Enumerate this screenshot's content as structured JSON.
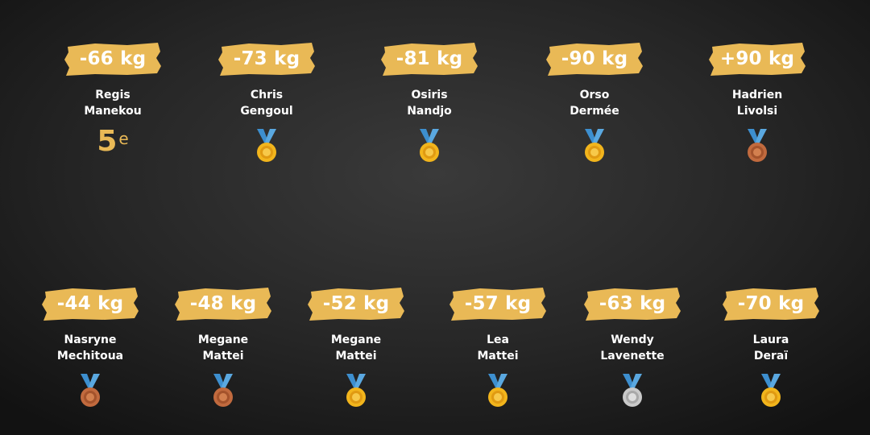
{
  "colors": {
    "accent": "#e9b956",
    "gold": "#f2b51c",
    "silver": "#c9c9c9",
    "bronze": "#c16a3e",
    "ribbon": "#3d8fcf"
  },
  "row1": [
    {
      "weight": "-66 kg",
      "first": "Regis",
      "last": "Manekou",
      "place": "5",
      "place_suffix": "e"
    },
    {
      "weight": "-73 kg",
      "first": "Chris",
      "last": "Gengoul",
      "medal": "gold",
      "medal_icon": "gold-medal-icon"
    },
    {
      "weight": "-81 kg",
      "first": "Osiris",
      "last": "Nandjo",
      "medal": "gold",
      "medal_icon": "gold-medal-icon"
    },
    {
      "weight": "-90 kg",
      "first": "Orso",
      "last": "Dermée",
      "medal": "gold",
      "medal_icon": "gold-medal-icon"
    },
    {
      "weight": "+90 kg",
      "first": "Hadrien",
      "last": "Livolsi",
      "medal": "bronze",
      "medal_icon": "bronze-medal-icon"
    }
  ],
  "row2": [
    {
      "weight": "-44 kg",
      "first": "Nasryne",
      "last": "Mechitoua",
      "medal": "bronze",
      "medal_icon": "bronze-medal-icon"
    },
    {
      "weight": "-48 kg",
      "first": "Megane",
      "last": "Mattei",
      "medal": "bronze",
      "medal_icon": "bronze-medal-icon"
    },
    {
      "weight": "-52 kg",
      "first": "Megane",
      "last": "Mattei",
      "medal": "gold",
      "medal_icon": "gold-medal-icon"
    },
    {
      "weight": "-57 kg",
      "first": "Lea",
      "last": "Mattei",
      "medal": "gold",
      "medal_icon": "gold-medal-icon"
    },
    {
      "weight": "-63 kg",
      "first": "Wendy",
      "last": "Lavenette",
      "medal": "silver",
      "medal_icon": "silver-medal-icon"
    },
    {
      "weight": "-70 kg",
      "first": "Laura",
      "last": "Deraï",
      "medal": "gold",
      "medal_icon": "gold-medal-icon"
    }
  ]
}
